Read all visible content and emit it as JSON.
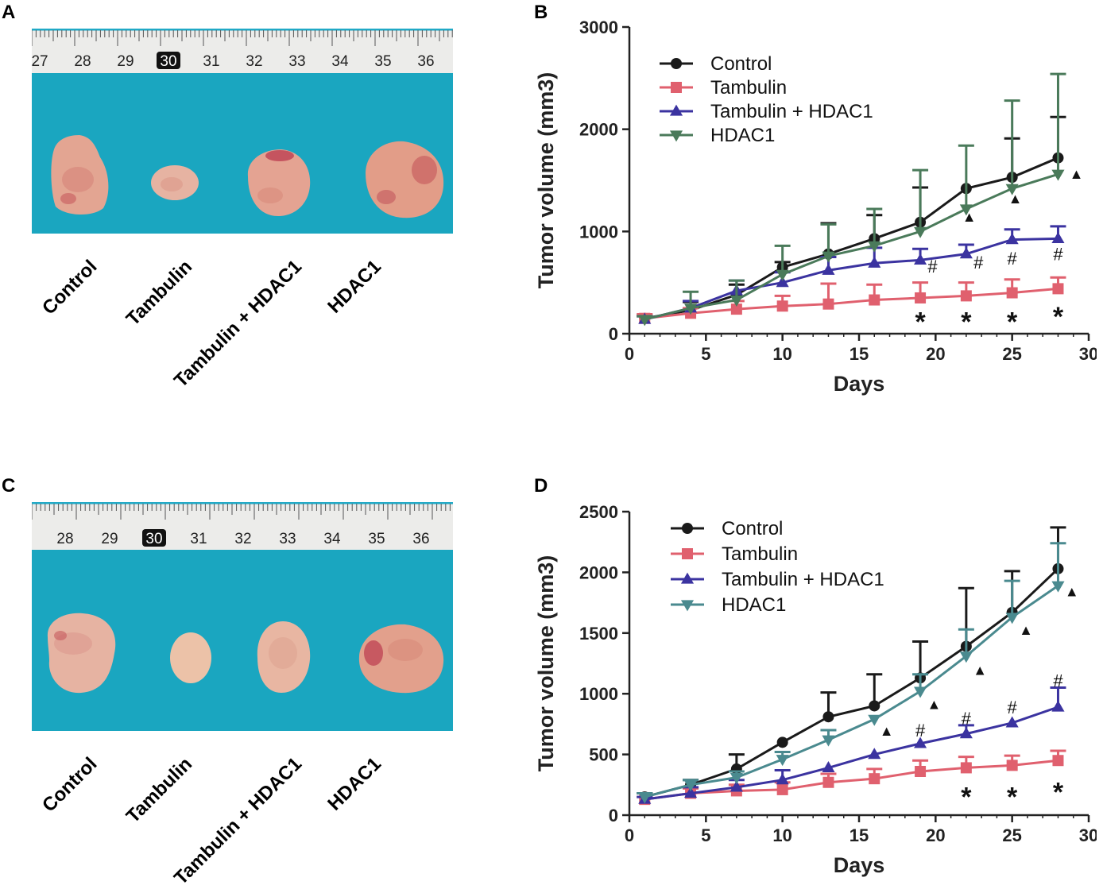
{
  "panels": {
    "a": {
      "letter": "A",
      "ruler_numbers": [
        "27",
        "28",
        "29",
        "30",
        "31",
        "32",
        "33",
        "34",
        "35",
        "36"
      ],
      "ruler_highlight": "30",
      "labels": [
        "Control",
        "Tambulin",
        "Tambulin + HDAC1",
        "HDAC1"
      ]
    },
    "c": {
      "letter": "C",
      "ruler_numbers": [
        "28",
        "29",
        "30",
        "31",
        "32",
        "33",
        "34",
        "35",
        "36"
      ],
      "ruler_highlight": "30",
      "labels": [
        "Control",
        "Tambulin",
        "Tambulin + HDAC1",
        "HDAC1"
      ]
    },
    "b": {
      "letter": "B"
    },
    "d": {
      "letter": "D"
    }
  },
  "colors": {
    "photo_bg": "#1aa6c0",
    "ruler": "#ececea",
    "control": "#1a1a1a",
    "tambulin": "#e0606e",
    "combo": "#3b33a0",
    "hdac1_b": "#4a7a5a",
    "hdac1_d": "#4a8a8f"
  },
  "chart_data": [
    {
      "type": "line",
      "panel": "B",
      "xlabel": "Days",
      "ylabel": "Tumor volume (mm3)",
      "xlim": [
        0,
        30
      ],
      "ylim": [
        0,
        3000
      ],
      "xticks": [
        0,
        5,
        10,
        15,
        20,
        25,
        30
      ],
      "yticks": [
        0,
        1000,
        2000,
        3000
      ],
      "x": [
        1,
        4,
        7,
        10,
        13,
        16,
        19,
        22,
        25,
        28
      ],
      "series": [
        {
          "name": "Control",
          "marker": "circle",
          "values": [
            150,
            230,
            380,
            650,
            780,
            930,
            1090,
            1420,
            1530,
            1720
          ],
          "errors": [
            30,
            80,
            100,
            50,
            300,
            230,
            340,
            0,
            380,
            400
          ]
        },
        {
          "name": "Tambulin",
          "marker": "square",
          "values": [
            150,
            200,
            240,
            270,
            290,
            330,
            350,
            370,
            400,
            440
          ],
          "errors": [
            40,
            50,
            80,
            100,
            200,
            150,
            150,
            130,
            130,
            110
          ]
        },
        {
          "name": "Tambulin + HDAC1",
          "marker": "triangle-up",
          "values": [
            140,
            250,
            420,
            500,
            620,
            690,
            720,
            780,
            920,
            930
          ],
          "errors": [
            30,
            70,
            100,
            100,
            130,
            150,
            110,
            90,
            100,
            120
          ]
        },
        {
          "name": "HDAC1",
          "marker": "triangle-down",
          "values": [
            140,
            250,
            330,
            580,
            760,
            860,
            1000,
            1220,
            1420,
            1560
          ],
          "errors": [
            30,
            160,
            190,
            280,
            310,
            360,
            600,
            620,
            860,
            980
          ]
        }
      ],
      "annotations": [
        {
          "text": "*",
          "x": 19,
          "y": 200
        },
        {
          "text": "*",
          "x": 22,
          "y": 200
        },
        {
          "text": "*",
          "x": 25,
          "y": 200
        },
        {
          "text": "*",
          "x": 28,
          "y": 250
        },
        {
          "text": "#",
          "x": 19.8,
          "y": 660
        },
        {
          "text": "#",
          "x": 22.8,
          "y": 700
        },
        {
          "text": "#",
          "x": 25,
          "y": 740
        },
        {
          "text": "#",
          "x": 28,
          "y": 780
        },
        {
          "text": "▲",
          "x": 22.2,
          "y": 1150
        },
        {
          "text": "▲",
          "x": 25.2,
          "y": 1330
        },
        {
          "text": "▲",
          "x": 29.2,
          "y": 1570
        }
      ]
    },
    {
      "type": "line",
      "panel": "D",
      "xlabel": "Days",
      "ylabel": "Tumor volume (mm3)",
      "xlim": [
        0,
        30
      ],
      "ylim": [
        0,
        2500
      ],
      "xticks": [
        0,
        5,
        10,
        15,
        20,
        25,
        30
      ],
      "yticks": [
        0,
        500,
        1000,
        1500,
        2000,
        2500
      ],
      "x": [
        1,
        4,
        7,
        10,
        13,
        16,
        19,
        22,
        25,
        28
      ],
      "series": [
        {
          "name": "Control",
          "marker": "circle",
          "values": [
            150,
            250,
            380,
            600,
            810,
            900,
            1130,
            1390,
            1670,
            2030
          ],
          "errors": [
            30,
            40,
            120,
            0,
            200,
            260,
            300,
            480,
            340,
            340
          ]
        },
        {
          "name": "Tambulin",
          "marker": "square",
          "values": [
            130,
            180,
            200,
            210,
            270,
            300,
            360,
            390,
            410,
            450
          ],
          "errors": [
            20,
            40,
            50,
            60,
            70,
            80,
            90,
            90,
            80,
            80
          ]
        },
        {
          "name": "Tambulin + HDAC1",
          "marker": "triangle-up",
          "values": [
            130,
            180,
            230,
            290,
            390,
            500,
            590,
            670,
            760,
            890
          ],
          "errors": [
            20,
            50,
            60,
            80,
            0,
            0,
            0,
            70,
            0,
            160
          ]
        },
        {
          "name": "HDAC1",
          "marker": "triangle-down",
          "values": [
            150,
            250,
            310,
            460,
            620,
            790,
            1020,
            1310,
            1630,
            1890
          ],
          "errors": [
            30,
            40,
            50,
            60,
            80,
            0,
            140,
            220,
            300,
            350
          ]
        }
      ],
      "annotations": [
        {
          "text": "*",
          "x": 22,
          "y": 220
        },
        {
          "text": "*",
          "x": 25,
          "y": 220
        },
        {
          "text": "*",
          "x": 28,
          "y": 260
        },
        {
          "text": "#",
          "x": 19,
          "y": 700
        },
        {
          "text": "#",
          "x": 22,
          "y": 800
        },
        {
          "text": "#",
          "x": 25,
          "y": 890
        },
        {
          "text": "#",
          "x": 28,
          "y": 1110
        },
        {
          "text": "▲",
          "x": 16.8,
          "y": 700
        },
        {
          "text": "▲",
          "x": 19.9,
          "y": 920
        },
        {
          "text": "▲",
          "x": 22.9,
          "y": 1200
        },
        {
          "text": "▲",
          "x": 25.9,
          "y": 1530
        },
        {
          "text": "▲",
          "x": 28.9,
          "y": 1850
        }
      ]
    }
  ]
}
